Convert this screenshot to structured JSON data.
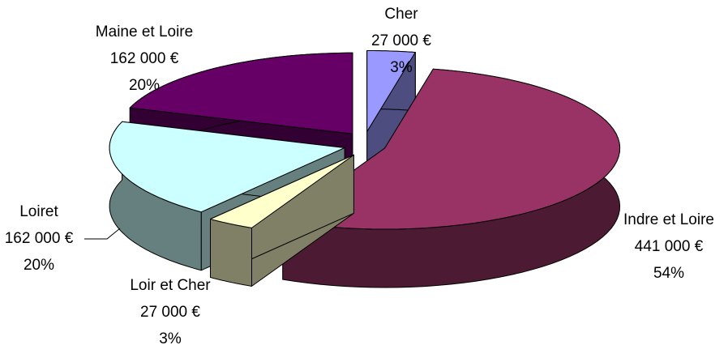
{
  "chart_data": {
    "type": "pie3d",
    "categories": [
      "Cher",
      "Indre et Loire",
      "Loir et Cher",
      "Loiret",
      "Maine et Loire"
    ],
    "values": [
      27000,
      441000,
      27000,
      162000,
      162000
    ],
    "value_labels": [
      "27 000 €",
      "441 000 €",
      "27 000 €",
      "162 000 €",
      "162 000 €"
    ],
    "percentages": [
      3,
      54,
      3,
      20,
      20
    ],
    "percentage_labels": [
      "3%",
      "54%",
      "3%",
      "20%",
      "20%"
    ],
    "colors": [
      "#9999ff",
      "#993366",
      "#ffffcc",
      "#ccffff",
      "#660066"
    ]
  }
}
